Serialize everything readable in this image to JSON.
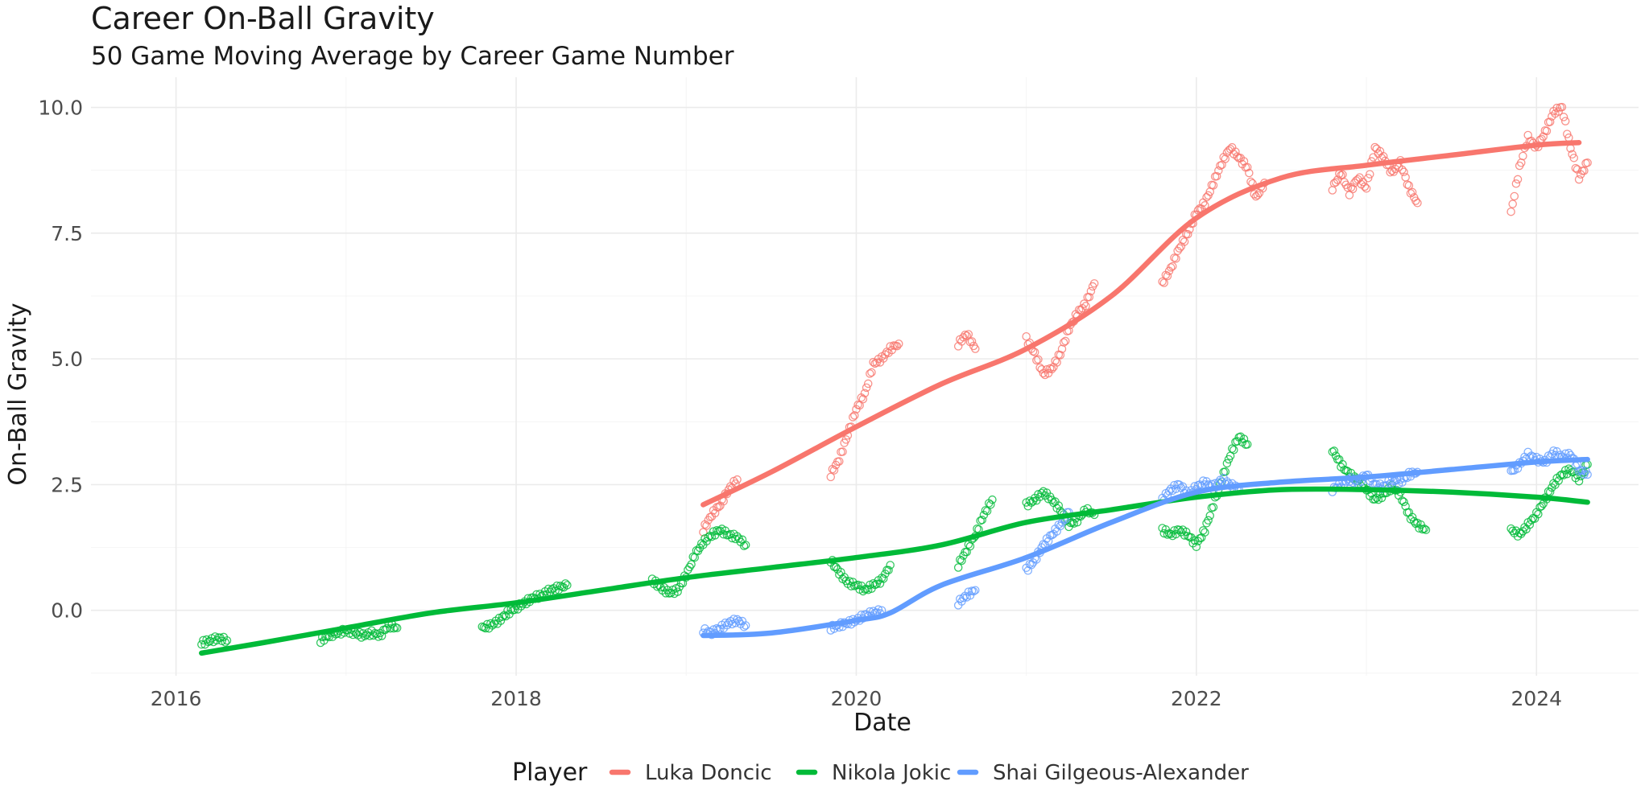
{
  "chart_data": {
    "type": "scatter",
    "title": "Career On-Ball Gravity",
    "subtitle": "50 Game Moving Average by Career Game Number",
    "xlabel": "Date",
    "ylabel": "On-Ball Gravity",
    "xlim": [
      2015.5,
      2024.6
    ],
    "ylim": [
      -1.3,
      10.6
    ],
    "x_ticks": [
      2016,
      2018,
      2020,
      2022,
      2024
    ],
    "x_tick_labels": [
      "2016",
      "2018",
      "2020",
      "2022",
      "2024"
    ],
    "y_ticks": [
      0,
      2.5,
      5,
      7.5,
      10
    ],
    "y_tick_labels": [
      "0.0",
      "2.5",
      "5.0",
      "7.5",
      "10.0"
    ],
    "grid": true,
    "legend": {
      "title": "Player",
      "position": "bottom"
    },
    "series": [
      {
        "name": "Luka Doncic",
        "color": "#F8766D",
        "trend": [
          [
            2019.1,
            2.1
          ],
          [
            2019.5,
            2.75
          ],
          [
            2020.0,
            3.65
          ],
          [
            2020.5,
            4.5
          ],
          [
            2021.0,
            5.2
          ],
          [
            2021.5,
            6.25
          ],
          [
            2022.0,
            7.8
          ],
          [
            2022.5,
            8.6
          ],
          [
            2023.0,
            8.85
          ],
          [
            2023.5,
            9.05
          ],
          [
            2024.0,
            9.25
          ],
          [
            2024.25,
            9.3
          ]
        ],
        "segments": [
          [
            [
              2019.1,
              1.6
            ],
            [
              2019.15,
              1.9
            ],
            [
              2019.2,
              2.1
            ],
            [
              2019.25,
              2.4
            ],
            [
              2019.3,
              2.6
            ]
          ],
          [
            [
              2019.85,
              2.7
            ],
            [
              2019.9,
              3.0
            ],
            [
              2019.95,
              3.5
            ],
            [
              2020.0,
              4.0
            ],
            [
              2020.05,
              4.3
            ],
            [
              2020.1,
              4.9
            ],
            [
              2020.15,
              5.0
            ],
            [
              2020.2,
              5.2
            ],
            [
              2020.25,
              5.3
            ]
          ],
          [
            [
              2020.6,
              5.3
            ],
            [
              2020.65,
              5.5
            ],
            [
              2020.7,
              5.2
            ]
          ],
          [
            [
              2021.0,
              5.4
            ],
            [
              2021.05,
              5.1
            ],
            [
              2021.1,
              4.7
            ],
            [
              2021.15,
              4.8
            ],
            [
              2021.2,
              5.1
            ],
            [
              2021.25,
              5.6
            ],
            [
              2021.3,
              5.9
            ],
            [
              2021.35,
              6.1
            ],
            [
              2021.4,
              6.5
            ]
          ],
          [
            [
              2021.8,
              6.5
            ],
            [
              2021.85,
              6.8
            ],
            [
              2021.9,
              7.2
            ],
            [
              2021.95,
              7.5
            ],
            [
              2022.0,
              7.9
            ],
            [
              2022.05,
              8.1
            ],
            [
              2022.1,
              8.5
            ],
            [
              2022.15,
              8.9
            ],
            [
              2022.2,
              9.2
            ],
            [
              2022.25,
              9.0
            ],
            [
              2022.3,
              8.8
            ],
            [
              2022.35,
              8.2
            ],
            [
              2022.4,
              8.5
            ]
          ],
          [
            [
              2022.8,
              8.4
            ],
            [
              2022.85,
              8.7
            ],
            [
              2022.9,
              8.3
            ],
            [
              2022.95,
              8.6
            ],
            [
              2023.0,
              8.4
            ],
            [
              2023.05,
              9.2
            ],
            [
              2023.1,
              9.0
            ],
            [
              2023.15,
              8.7
            ],
            [
              2023.2,
              8.9
            ],
            [
              2023.25,
              8.4
            ],
            [
              2023.3,
              8.1
            ]
          ],
          [
            [
              2023.85,
              7.9
            ],
            [
              2023.9,
              8.8
            ],
            [
              2023.95,
              9.4
            ],
            [
              2024.0,
              9.2
            ],
            [
              2024.05,
              9.5
            ],
            [
              2024.1,
              9.9
            ],
            [
              2024.15,
              10.0
            ],
            [
              2024.2,
              9.2
            ],
            [
              2024.25,
              8.6
            ],
            [
              2024.3,
              8.9
            ]
          ]
        ]
      },
      {
        "name": "Nikola Jokic",
        "color": "#00BA38",
        "trend": [
          [
            2016.15,
            -0.85
          ],
          [
            2016.5,
            -0.65
          ],
          [
            2017.0,
            -0.35
          ],
          [
            2017.5,
            -0.05
          ],
          [
            2018.0,
            0.15
          ],
          [
            2018.5,
            0.4
          ],
          [
            2019.0,
            0.65
          ],
          [
            2019.5,
            0.85
          ],
          [
            2020.0,
            1.05
          ],
          [
            2020.5,
            1.3
          ],
          [
            2021.0,
            1.75
          ],
          [
            2021.5,
            2.0
          ],
          [
            2022.0,
            2.25
          ],
          [
            2022.5,
            2.4
          ],
          [
            2023.0,
            2.4
          ],
          [
            2023.5,
            2.35
          ],
          [
            2024.0,
            2.25
          ],
          [
            2024.3,
            2.15
          ]
        ],
        "segments": [
          [
            [
              2016.15,
              -0.65
            ],
            [
              2016.2,
              -0.6
            ],
            [
              2016.25,
              -0.55
            ],
            [
              2016.3,
              -0.6
            ]
          ],
          [
            [
              2016.85,
              -0.6
            ],
            [
              2016.9,
              -0.5
            ],
            [
              2016.95,
              -0.45
            ],
            [
              2017.0,
              -0.4
            ],
            [
              2017.05,
              -0.45
            ],
            [
              2017.1,
              -0.5
            ],
            [
              2017.15,
              -0.45
            ],
            [
              2017.2,
              -0.5
            ],
            [
              2017.25,
              -0.3
            ],
            [
              2017.3,
              -0.35
            ]
          ],
          [
            [
              2017.8,
              -0.35
            ],
            [
              2017.85,
              -0.3
            ],
            [
              2017.9,
              -0.2
            ],
            [
              2017.95,
              -0.05
            ],
            [
              2018.0,
              0.05
            ],
            [
              2018.05,
              0.15
            ],
            [
              2018.1,
              0.25
            ],
            [
              2018.15,
              0.3
            ],
            [
              2018.2,
              0.4
            ],
            [
              2018.25,
              0.45
            ],
            [
              2018.3,
              0.5
            ]
          ],
          [
            [
              2018.8,
              0.6
            ],
            [
              2018.85,
              0.45
            ],
            [
              2018.9,
              0.35
            ],
            [
              2018.95,
              0.4
            ],
            [
              2019.0,
              0.7
            ],
            [
              2019.05,
              1.1
            ],
            [
              2019.1,
              1.35
            ],
            [
              2019.15,
              1.5
            ],
            [
              2019.2,
              1.6
            ],
            [
              2019.25,
              1.5
            ],
            [
              2019.3,
              1.45
            ],
            [
              2019.35,
              1.3
            ]
          ],
          [
            [
              2019.85,
              1.0
            ],
            [
              2019.9,
              0.75
            ],
            [
              2019.95,
              0.55
            ],
            [
              2020.0,
              0.5
            ],
            [
              2020.05,
              0.4
            ],
            [
              2020.1,
              0.5
            ],
            [
              2020.15,
              0.6
            ],
            [
              2020.2,
              0.9
            ]
          ],
          [
            [
              2020.6,
              0.9
            ],
            [
              2020.65,
              1.2
            ],
            [
              2020.7,
              1.5
            ],
            [
              2020.75,
              1.9
            ],
            [
              2020.8,
              2.2
            ]
          ],
          [
            [
              2021.0,
              2.1
            ],
            [
              2021.05,
              2.2
            ],
            [
              2021.1,
              2.35
            ],
            [
              2021.15,
              2.2
            ],
            [
              2021.2,
              2.0
            ],
            [
              2021.25,
              1.7
            ],
            [
              2021.3,
              1.8
            ],
            [
              2021.35,
              2.0
            ],
            [
              2021.4,
              1.9
            ]
          ],
          [
            [
              2021.8,
              1.6
            ],
            [
              2021.85,
              1.5
            ],
            [
              2021.9,
              1.6
            ],
            [
              2021.95,
              1.5
            ],
            [
              2022.0,
              1.3
            ],
            [
              2022.05,
              1.6
            ],
            [
              2022.1,
              2.1
            ],
            [
              2022.15,
              2.6
            ],
            [
              2022.2,
              3.1
            ],
            [
              2022.25,
              3.45
            ],
            [
              2022.3,
              3.3
            ]
          ],
          [
            [
              2022.8,
              3.2
            ],
            [
              2022.85,
              2.9
            ],
            [
              2022.9,
              2.7
            ],
            [
              2022.95,
              2.6
            ],
            [
              2023.0,
              2.4
            ],
            [
              2023.05,
              2.2
            ],
            [
              2023.1,
              2.3
            ],
            [
              2023.15,
              2.45
            ],
            [
              2023.2,
              2.3
            ],
            [
              2023.25,
              1.9
            ],
            [
              2023.3,
              1.7
            ],
            [
              2023.35,
              1.6
            ]
          ],
          [
            [
              2023.85,
              1.6
            ],
            [
              2023.9,
              1.5
            ],
            [
              2023.95,
              1.7
            ],
            [
              2024.0,
              1.9
            ],
            [
              2024.05,
              2.2
            ],
            [
              2024.1,
              2.5
            ],
            [
              2024.15,
              2.7
            ],
            [
              2024.2,
              2.8
            ],
            [
              2024.25,
              2.6
            ],
            [
              2024.3,
              2.9
            ]
          ]
        ]
      },
      {
        "name": "Shai Gilgeous-Alexander",
        "color": "#619CFF",
        "trend": [
          [
            2019.1,
            -0.5
          ],
          [
            2019.5,
            -0.45
          ],
          [
            2020.0,
            -0.2
          ],
          [
            2020.2,
            -0.05
          ],
          [
            2020.5,
            0.5
          ],
          [
            2021.0,
            1.05
          ],
          [
            2021.5,
            1.75
          ],
          [
            2022.0,
            2.35
          ],
          [
            2022.5,
            2.55
          ],
          [
            2023.0,
            2.65
          ],
          [
            2023.5,
            2.8
          ],
          [
            2024.0,
            2.95
          ],
          [
            2024.3,
            3.0
          ]
        ],
        "segments": [
          [
            [
              2019.1,
              -0.4
            ],
            [
              2019.15,
              -0.45
            ],
            [
              2019.2,
              -0.35
            ],
            [
              2019.25,
              -0.25
            ],
            [
              2019.3,
              -0.2
            ],
            [
              2019.35,
              -0.3
            ]
          ],
          [
            [
              2019.85,
              -0.35
            ],
            [
              2019.9,
              -0.3
            ],
            [
              2019.95,
              -0.25
            ],
            [
              2020.0,
              -0.2
            ],
            [
              2020.05,
              -0.1
            ],
            [
              2020.1,
              -0.05
            ],
            [
              2020.15,
              0.0
            ]
          ],
          [
            [
              2020.6,
              0.15
            ],
            [
              2020.65,
              0.3
            ],
            [
              2020.7,
              0.4
            ]
          ],
          [
            [
              2021.0,
              0.8
            ],
            [
              2021.05,
              1.0
            ],
            [
              2021.1,
              1.3
            ],
            [
              2021.15,
              1.5
            ],
            [
              2021.2,
              1.7
            ],
            [
              2021.25,
              1.95
            ]
          ],
          [
            [
              2021.8,
              2.2
            ],
            [
              2021.85,
              2.4
            ],
            [
              2021.9,
              2.5
            ],
            [
              2021.95,
              2.3
            ],
            [
              2022.0,
              2.45
            ],
            [
              2022.05,
              2.55
            ],
            [
              2022.1,
              2.45
            ],
            [
              2022.15,
              2.6
            ],
            [
              2022.2,
              2.5
            ],
            [
              2022.25,
              2.4
            ]
          ],
          [
            [
              2022.8,
              2.4
            ],
            [
              2022.85,
              2.5
            ],
            [
              2022.9,
              2.6
            ],
            [
              2022.95,
              2.55
            ],
            [
              2023.0,
              2.7
            ],
            [
              2023.05,
              2.5
            ],
            [
              2023.1,
              2.45
            ],
            [
              2023.15,
              2.6
            ],
            [
              2023.2,
              2.55
            ],
            [
              2023.25,
              2.7
            ],
            [
              2023.3,
              2.75
            ]
          ],
          [
            [
              2023.85,
              2.75
            ],
            [
              2023.9,
              2.9
            ],
            [
              2023.95,
              3.1
            ],
            [
              2024.0,
              3.0
            ],
            [
              2024.05,
              2.95
            ],
            [
              2024.1,
              3.15
            ],
            [
              2024.15,
              3.05
            ],
            [
              2024.2,
              3.1
            ],
            [
              2024.25,
              2.8
            ],
            [
              2024.3,
              2.7
            ]
          ]
        ]
      }
    ]
  }
}
